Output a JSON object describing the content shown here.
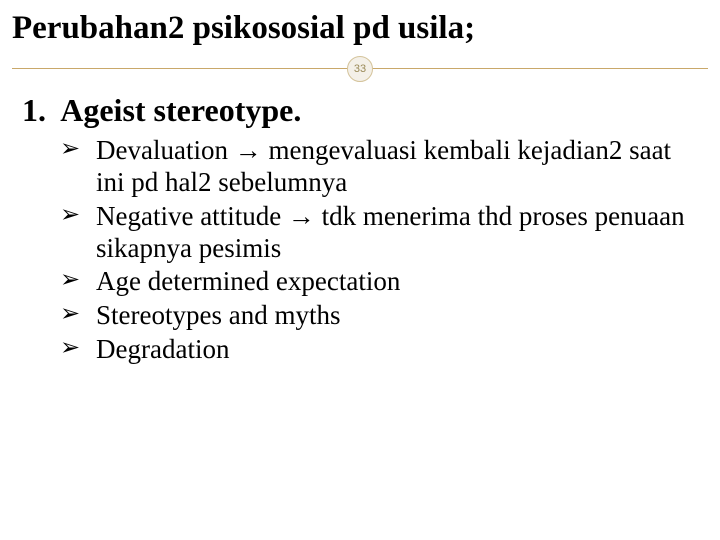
{
  "slide": {
    "title": "Perubahan2 psikososial pd usila;",
    "page_number": "33",
    "heading_number": "1.",
    "heading_text": "Ageist stereotype.",
    "bullets": [
      "Devaluation → mengevaluasi kembali kejadian2 saat ini pd hal2 sebelumnya",
      "Negative attitude → tdk menerima thd proses penuaan sikapnya pesimis",
      "Age determined expectation",
      "Stereotypes and myths",
      "Degradation"
    ],
    "colors": {
      "background": "#ffffff",
      "text": "#000000",
      "divider": "#c9a86a",
      "badge_bg": "#f4f0e8",
      "badge_border": "#d4c39a",
      "badge_text": "#9a8a58"
    },
    "typography": {
      "title_fontsize": 33,
      "heading_fontsize": 32,
      "bullet_fontsize": 27,
      "badge_fontsize": 11,
      "font_family": "Georgia"
    }
  }
}
